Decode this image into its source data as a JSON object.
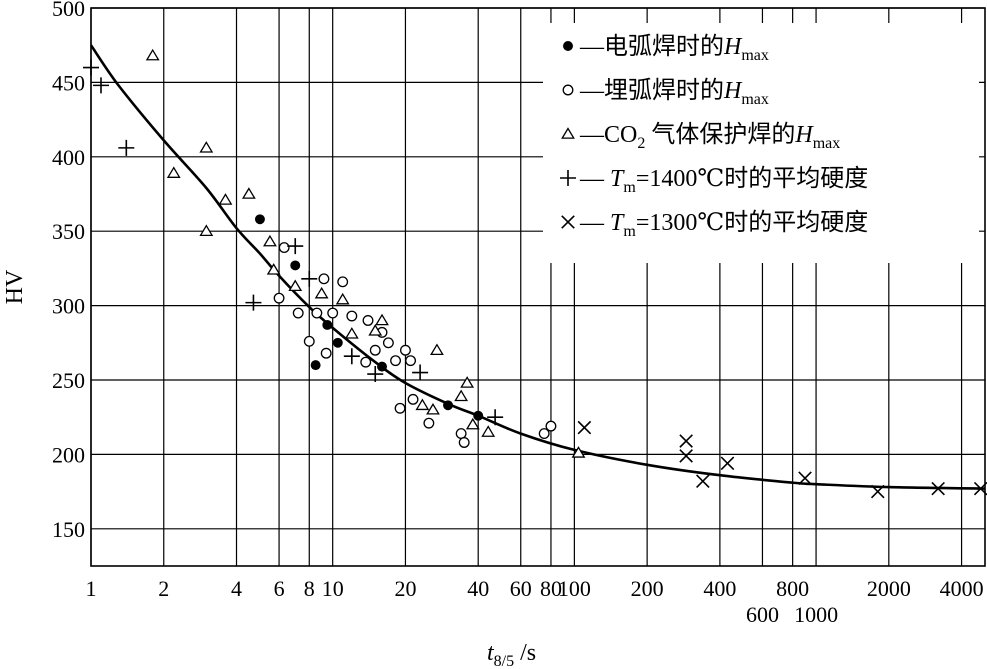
{
  "chart_data": {
    "type": "scatter",
    "xlabel": {
      "main": "t",
      "sub": "8/5",
      "unit": " /s"
    },
    "ylabel": "HV",
    "x_scale": "log",
    "xlim": [
      1,
      5000
    ],
    "ylim": [
      125,
      500
    ],
    "x_ticks": [
      1,
      2,
      4,
      6,
      8,
      10,
      20,
      40,
      60,
      80,
      100,
      200,
      400,
      600,
      800,
      1000,
      2000,
      4000
    ],
    "x_tick_labels_upper": [
      "1",
      "2",
      "4",
      "6",
      "8",
      "10",
      "20",
      "40",
      "60",
      "80",
      "100",
      "200",
      "400",
      "800",
      "2000",
      "4000"
    ],
    "x_tick_labels_upper_values": [
      1,
      2,
      4,
      6,
      8,
      10,
      20,
      40,
      60,
      80,
      100,
      200,
      400,
      800,
      2000,
      4000
    ],
    "x_tick_labels_lower": [
      "600",
      "1000"
    ],
    "x_tick_labels_lower_values": [
      600,
      1000
    ],
    "y_ticks": [
      150,
      200,
      250,
      300,
      350,
      400,
      450,
      500
    ],
    "grid": true,
    "legend_position": "top-right",
    "legend": [
      {
        "marker": "filled-circle",
        "text": "—电弧焊时的",
        "var": "H",
        "sub": "max"
      },
      {
        "marker": "open-circle",
        "text": "—埋弧焊时的",
        "var": "H",
        "sub": "max"
      },
      {
        "marker": "triangle",
        "text": "—CO",
        "sub2": "2",
        "text2": " 气体保护焊的",
        "var": "H",
        "sub": "max"
      },
      {
        "marker": "plus",
        "var": "T",
        "sub": "m",
        "text": "=1400℃时的平均硬度"
      },
      {
        "marker": "cross",
        "var": "T",
        "sub": "m",
        "text": "=1300℃时的平均硬度"
      }
    ],
    "series": [
      {
        "name": "电弧焊时的Hmax",
        "marker": "filled-circle",
        "points": [
          [
            5,
            358
          ],
          [
            7,
            327
          ],
          [
            8.5,
            260
          ],
          [
            9.5,
            287
          ],
          [
            10.5,
            275
          ],
          [
            16,
            259
          ],
          [
            30,
            233
          ],
          [
            40,
            226
          ]
        ]
      },
      {
        "name": "埋弧焊时的Hmax",
        "marker": "open-circle",
        "points": [
          [
            6,
            305
          ],
          [
            6.3,
            339
          ],
          [
            7.2,
            295
          ],
          [
            8,
            276
          ],
          [
            8.6,
            295
          ],
          [
            9.2,
            318
          ],
          [
            9.4,
            268
          ],
          [
            10,
            295
          ],
          [
            11,
            316
          ],
          [
            12,
            293
          ],
          [
            13.7,
            262
          ],
          [
            14,
            290
          ],
          [
            15,
            270
          ],
          [
            16,
            282
          ],
          [
            17,
            275
          ],
          [
            18.2,
            263
          ],
          [
            19,
            231
          ],
          [
            20,
            270
          ],
          [
            21,
            263
          ],
          [
            21.5,
            237
          ],
          [
            25,
            221
          ],
          [
            34,
            214
          ],
          [
            35,
            208
          ],
          [
            75,
            214
          ],
          [
            80,
            219
          ]
        ]
      },
      {
        "name": "CO2 气体保护焊的Hmax",
        "marker": "triangle",
        "points": [
          [
            1.8,
            468
          ],
          [
            2.2,
            389
          ],
          [
            3,
            406
          ],
          [
            3.6,
            371
          ],
          [
            3,
            350
          ],
          [
            4.5,
            375
          ],
          [
            5.5,
            343
          ],
          [
            5.7,
            324
          ],
          [
            7,
            313
          ],
          [
            9,
            308
          ],
          [
            11,
            304
          ],
          [
            12,
            281
          ],
          [
            15,
            283
          ],
          [
            16,
            290
          ],
          [
            23.5,
            233
          ],
          [
            26,
            230
          ],
          [
            27,
            270
          ],
          [
            34,
            239
          ],
          [
            36,
            248
          ],
          [
            38,
            220
          ],
          [
            44,
            215
          ],
          [
            104,
            201
          ]
        ]
      },
      {
        "name": "Tm=1400℃时的平均硬度",
        "marker": "plus",
        "points": [
          [
            1,
            460
          ],
          [
            1.1,
            448
          ],
          [
            1.4,
            406
          ],
          [
            4.7,
            302
          ],
          [
            7,
            340
          ],
          [
            8,
            318
          ],
          [
            12,
            266
          ],
          [
            15,
            254
          ],
          [
            23,
            255
          ],
          [
            47,
            225
          ]
        ]
      },
      {
        "name": "Tm=1300℃时的平均硬度",
        "marker": "cross",
        "points": [
          [
            110,
            218
          ],
          [
            290,
            209
          ],
          [
            290,
            199
          ],
          [
            340,
            182
          ],
          [
            430,
            194
          ],
          [
            900,
            184
          ],
          [
            1800,
            175
          ],
          [
            3200,
            177
          ],
          [
            4800,
            177
          ]
        ]
      }
    ],
    "fit_curve": [
      [
        1,
        475
      ],
      [
        1.3,
        448
      ],
      [
        2,
        411
      ],
      [
        3,
        379
      ],
      [
        4,
        352
      ],
      [
        5,
        335
      ],
      [
        6,
        320
      ],
      [
        8,
        299
      ],
      [
        10,
        285
      ],
      [
        15,
        262
      ],
      [
        20,
        248
      ],
      [
        30,
        234
      ],
      [
        40,
        226
      ],
      [
        60,
        214
      ],
      [
        100,
        203
      ],
      [
        200,
        193
      ],
      [
        400,
        186
      ],
      [
        800,
        181
      ],
      [
        1000,
        180
      ],
      [
        2000,
        178
      ],
      [
        5000,
        177
      ]
    ]
  }
}
